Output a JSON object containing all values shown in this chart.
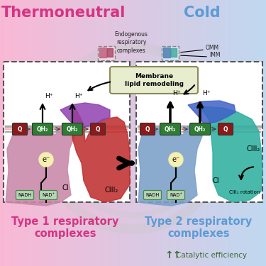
{
  "title_left": "Thermoneutral",
  "title_right": "Cold",
  "title_left_color": "#D63384",
  "title_right_color": "#5B9BD5",
  "type1_label": "Type 1 respiratory\ncomplexes",
  "type2_label": "Type 2 respiratory\ncomplexes",
  "type1_color": "#D63384",
  "type2_color": "#5B9BD5",
  "catalytic_label": "Catalytic efficiency",
  "catalytic_color": "#3A6B3A",
  "membrane_label": "Membrane\nlipid remodeling",
  "endogenous_label": "Endogenous\nrespiratory\ncomplexes",
  "omm_label": "OMM",
  "imm_label": "IMM",
  "ci_label": "CI",
  "ciii2_label": "CIII₂",
  "ciii2_rotation_label": "CIII₂ rotation",
  "nadh_label": "NADH",
  "nad_label": "NAD⁺",
  "e_label": "e⁻",
  "q_label": "Q",
  "qh2_label": "QH₂",
  "hplus_label": "H⁺",
  "panel_bg": "#FFFFFF",
  "panel_edge": "#555555",
  "q_bg": "#8B1A1A",
  "qh2_bg": "#2E7D32",
  "nadh_bg": "#B8D4B8",
  "e_bg": "#F5F0B0",
  "membrane_box_bg": "#E8EDD0",
  "membrane_box_edge": "#8B8B5A",
  "ci_left_color": "#C888A8",
  "ciii2_left_color": "#C03030",
  "ciii2_left_top_color": "#9040B0",
  "ci_right_color": "#7BA0C8",
  "ciii2_right_color": "#30B0A0",
  "ciii2_right_top_color": "#4060C8"
}
